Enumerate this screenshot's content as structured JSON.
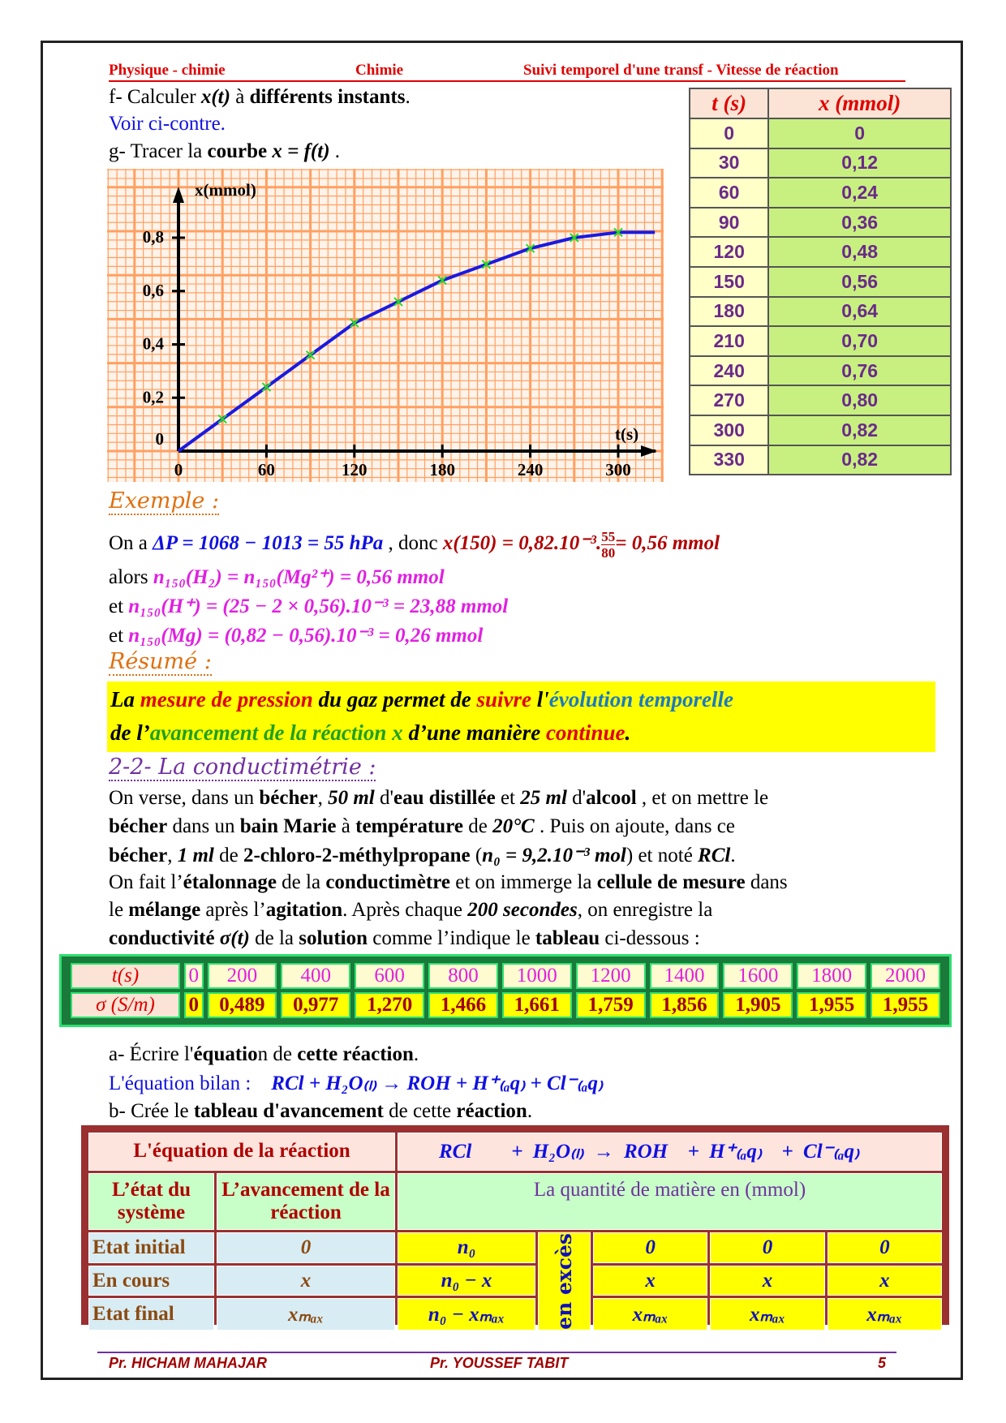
{
  "header": {
    "left": "Physique - chimie",
    "center": "Chimie",
    "right": "Suivi temporel d'une transf - Vitesse de réaction"
  },
  "questions": {
    "f": [
      {
        "t": "f- Calculer "
      },
      {
        "t": "x(t)",
        "m": 1
      },
      {
        "t": " à "
      },
      {
        "t": "différents instants",
        "b": 1
      },
      {
        "t": "."
      }
    ],
    "f_answer": "Voir ci-contre.",
    "g": [
      {
        "t": "g- Tracer la "
      },
      {
        "t": "courbe",
        "b": 1
      },
      {
        "t": " "
      },
      {
        "t": "x = f(t)",
        "m": 1
      },
      {
        "t": " ."
      }
    ]
  },
  "xt_table": {
    "headers": [
      "t (s)",
      "x (mmol)"
    ],
    "rows": [
      [
        "0",
        "0"
      ],
      [
        "30",
        "0,12"
      ],
      [
        "60",
        "0,24"
      ],
      [
        "90",
        "0,36"
      ],
      [
        "120",
        "0,48"
      ],
      [
        "150",
        "0,56"
      ],
      [
        "180",
        "0,64"
      ],
      [
        "210",
        "0,70"
      ],
      [
        "240",
        "0,76"
      ],
      [
        "270",
        "0,80"
      ],
      [
        "300",
        "0,82"
      ],
      [
        "330",
        "0,82"
      ]
    ]
  },
  "chart_data": {
    "type": "line",
    "xlabel": "t(s)",
    "ylabel": "x(mmol)",
    "x": [
      0,
      30,
      60,
      90,
      120,
      150,
      180,
      210,
      240,
      270,
      300,
      330
    ],
    "y": [
      0,
      0.12,
      0.24,
      0.36,
      0.48,
      0.56,
      0.64,
      0.7,
      0.76,
      0.8,
      0.82,
      0.82
    ],
    "xticks": [
      "0",
      "60",
      "120",
      "180",
      "240",
      "300"
    ],
    "yticks": [
      "0",
      "0,2",
      "0,4",
      "0,6",
      "0,8"
    ],
    "xlim": [
      0,
      330
    ],
    "ylim": [
      0,
      0.9
    ],
    "grid": true,
    "colors": {
      "paper": "#ffa060",
      "line": "#1a1ae0",
      "marker": "#20e020"
    }
  },
  "example": {
    "title": "Exemple :",
    "l1": {
      "a": "On a ",
      "b": "ΔP = 1068 − 1013 = 55 hPa",
      "c": " , donc ",
      "d": "x(150) = 0,82.10⁻³.",
      "num": "55",
      "den": "80",
      "e": "= 0,56 mmol"
    },
    "l2": {
      "a": "alors ",
      "b": "n₁₅₀(H₂) = n₁₅₀(Mg²⁺) = 0,56 mmol"
    },
    "l3": {
      "a": "et ",
      "b": "n₁₅₀(H⁺) = (25 − 2 × 0,56).10⁻³ = 23,88 mmol"
    },
    "l4": {
      "a": "et ",
      "b": "n₁₅₀(Mg) = (0,82 − 0,56).10⁻³ = 0,26 mmol"
    }
  },
  "resume": {
    "title": "Résumé :",
    "segments": [
      {
        "t": "La ",
        "c": "#000"
      },
      {
        "t": "mesure de pression",
        "c": "#e00000"
      },
      {
        "t": " du gaz permet de ",
        "c": "#000"
      },
      {
        "t": "suivre",
        "c": "#e00000"
      },
      {
        "t": " l'",
        "c": "#000"
      },
      {
        "t": "évolution temporelle",
        "c": "#1a7ac0"
      },
      {
        "t": "\n",
        "c": "#000"
      },
      {
        "t": "de l’",
        "c": "#000"
      },
      {
        "t": "avancement de la réaction x",
        "c": "#20a020"
      },
      {
        "t": " d’une manière ",
        "c": "#000"
      },
      {
        "t": "continue",
        "c": "#e00000"
      },
      {
        "t": ".",
        "c": "#000"
      }
    ]
  },
  "section": {
    "title": "2-2- La conductimétrie :"
  },
  "paragraph": [
    [
      {
        "t": "On verse, dans un "
      },
      {
        "t": "bécher",
        "b": 1
      },
      {
        "t": ", "
      },
      {
        "t": "50 ml",
        "m": 1
      },
      {
        "t": "  d'"
      },
      {
        "t": "eau distillée",
        "b": 1
      },
      {
        "t": " et "
      },
      {
        "t": "25 ml",
        "m": 1
      },
      {
        "t": " d'"
      },
      {
        "t": "alcool",
        "b": 1
      },
      {
        "t": " , et on mettre le"
      }
    ],
    [
      {
        "t": "bécher",
        "b": 1
      },
      {
        "t": " dans un "
      },
      {
        "t": "bain Marie",
        "b": 1
      },
      {
        "t": " à "
      },
      {
        "t": "température",
        "b": 1
      },
      {
        "t": " de "
      },
      {
        "t": "20°C",
        "m": 1
      },
      {
        "t": " . Puis on ajoute, dans ce"
      }
    ],
    [
      {
        "t": "bécher",
        "b": 1
      },
      {
        "t": ", "
      },
      {
        "t": "1 ml",
        "m": 1
      },
      {
        "t": " de "
      },
      {
        "t": "2-chloro-2-méthylpropane",
        "b": 1
      },
      {
        "t": "  ("
      },
      {
        "t": "n₀ = 9,2.10⁻³ mol",
        "m": 1
      },
      {
        "t": ")  et noté "
      },
      {
        "t": "RCl",
        "m": 1
      },
      {
        "t": "."
      }
    ],
    [
      {
        "t": "On fait l’"
      },
      {
        "t": "étalonnage",
        "b": 1
      },
      {
        "t": " de la "
      },
      {
        "t": "conductimètre",
        "b": 1
      },
      {
        "t": " et on immerge la "
      },
      {
        "t": "cellule de mesure",
        "b": 1
      },
      {
        "t": " dans"
      }
    ],
    [
      {
        "t": "le  "
      },
      {
        "t": "mélange",
        "b": 1
      },
      {
        "t": "  après  l’"
      },
      {
        "t": "agitation",
        "b": 1
      },
      {
        "t": ".  Après  chaque  "
      },
      {
        "t": "200 secondes",
        "m": 1
      },
      {
        "t": ",  on  enregistre  la"
      }
    ],
    [
      {
        "t": "conductivité ",
        "b": 1
      },
      {
        "t": "σ(t)",
        "m": 1
      },
      {
        "t": " de la "
      },
      {
        "t": "solution",
        "b": 1
      },
      {
        "t": " comme l’indique le "
      },
      {
        "t": "tableau",
        "b": 1
      },
      {
        "t": " ci-dessous :"
      }
    ]
  ],
  "conductivity_table": {
    "t_label": "t(s)",
    "t": [
      "0",
      "200",
      "400",
      "600",
      "800",
      "1000",
      "1200",
      "1400",
      "1600",
      "1800",
      "2000"
    ],
    "sigma_label": "σ (S/m)",
    "sigma": [
      "0",
      "0,489",
      "0,977",
      "1,270",
      "1,466",
      "1,661",
      "1,759",
      "1,856",
      "1,905",
      "1,955",
      "1,955"
    ]
  },
  "question_a": [
    {
      "t": "a- Écrire l'"
    },
    {
      "t": "équatio",
      "b": 1
    },
    {
      "t": "n de "
    },
    {
      "t": "cette réaction",
      "b": 1
    },
    {
      "t": "."
    }
  ],
  "equation": {
    "label": "L'équation bilan :",
    "value": "RCl +  H₂O₍ₗ₎  →  ROH  +  H⁺₍ₐq₎  +  Cl⁻₍ₐq₎"
  },
  "question_b": [
    {
      "t": "b- Crée le "
    },
    {
      "t": "tableau d'avancement",
      "b": 1
    },
    {
      "t": " de cette "
    },
    {
      "t": "réaction",
      "b": 1
    },
    {
      "t": "."
    }
  ],
  "advancement_table": {
    "eq_label": "L'équation de la réaction",
    "eq": [
      "RCl",
      "+ H₂O₍ₗ₎ → ROH",
      "+ H⁺₍ₐq₎",
      "+ Cl⁻₍ₐq₎"
    ],
    "state_label": "L’état du système",
    "adv_label": "L’avancement de la réaction",
    "qty_label": "La quantité de matière en (mmol)",
    "excess": "en excès",
    "rows": [
      {
        "state": "Etat initial",
        "adv": "0",
        "rcl": "n₀",
        "roh": "0",
        "h": "0",
        "cl": "0"
      },
      {
        "state": "En cours",
        "adv": "x",
        "rcl": "n₀ − x",
        "roh": "x",
        "h": "x",
        "cl": "x"
      },
      {
        "state": "Etat final",
        "adv": "xₘₐₓ",
        "rcl": "n₀ − xₘₐₓ",
        "roh": "xₘₐₓ",
        "h": "xₘₐₓ",
        "cl": "xₘₐₓ"
      }
    ]
  },
  "footer": {
    "left": "Pr. HICHAM MAHAJAR",
    "center": "Pr. YOUSSEF TABIT",
    "page": "5"
  }
}
